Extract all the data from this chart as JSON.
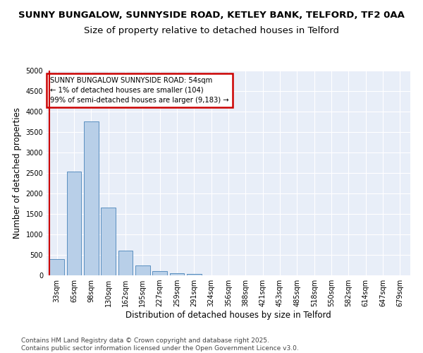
{
  "title_line1": "SUNNY BUNGALOW, SUNNYSIDE ROAD, KETLEY BANK, TELFORD, TF2 0AA",
  "title_line2": "Size of property relative to detached houses in Telford",
  "xlabel": "Distribution of detached houses by size in Telford",
  "ylabel": "Number of detached properties",
  "categories": [
    "33sqm",
    "65sqm",
    "98sqm",
    "130sqm",
    "162sqm",
    "195sqm",
    "227sqm",
    "259sqm",
    "291sqm",
    "324sqm",
    "356sqm",
    "388sqm",
    "421sqm",
    "453sqm",
    "485sqm",
    "518sqm",
    "550sqm",
    "582sqm",
    "614sqm",
    "647sqm",
    "679sqm"
  ],
  "values": [
    390,
    2540,
    3760,
    1650,
    610,
    240,
    105,
    55,
    30,
    0,
    0,
    0,
    0,
    0,
    0,
    0,
    0,
    0,
    0,
    0,
    0
  ],
  "bar_color": "#b8cfe8",
  "bar_edge_color": "#5a8fc0",
  "vline_color": "#cc0000",
  "annotation_text": "SUNNY BUNGALOW SUNNYSIDE ROAD: 54sqm\n← 1% of detached houses are smaller (104)\n99% of semi-detached houses are larger (9,183) →",
  "annotation_box_color": "#ffffff",
  "annotation_box_edge": "#cc0000",
  "ylim": [
    0,
    5000
  ],
  "yticks": [
    0,
    500,
    1000,
    1500,
    2000,
    2500,
    3000,
    3500,
    4000,
    4500,
    5000
  ],
  "footnote": "Contains HM Land Registry data © Crown copyright and database right 2025.\nContains public sector information licensed under the Open Government Licence v3.0.",
  "bg_color": "#ffffff",
  "plot_bg_color": "#e8eef8",
  "grid_color": "#ffffff",
  "title_fontsize": 9.5,
  "subtitle_fontsize": 9.5,
  "axis_label_fontsize": 8.5,
  "tick_fontsize": 7,
  "footnote_fontsize": 6.5
}
